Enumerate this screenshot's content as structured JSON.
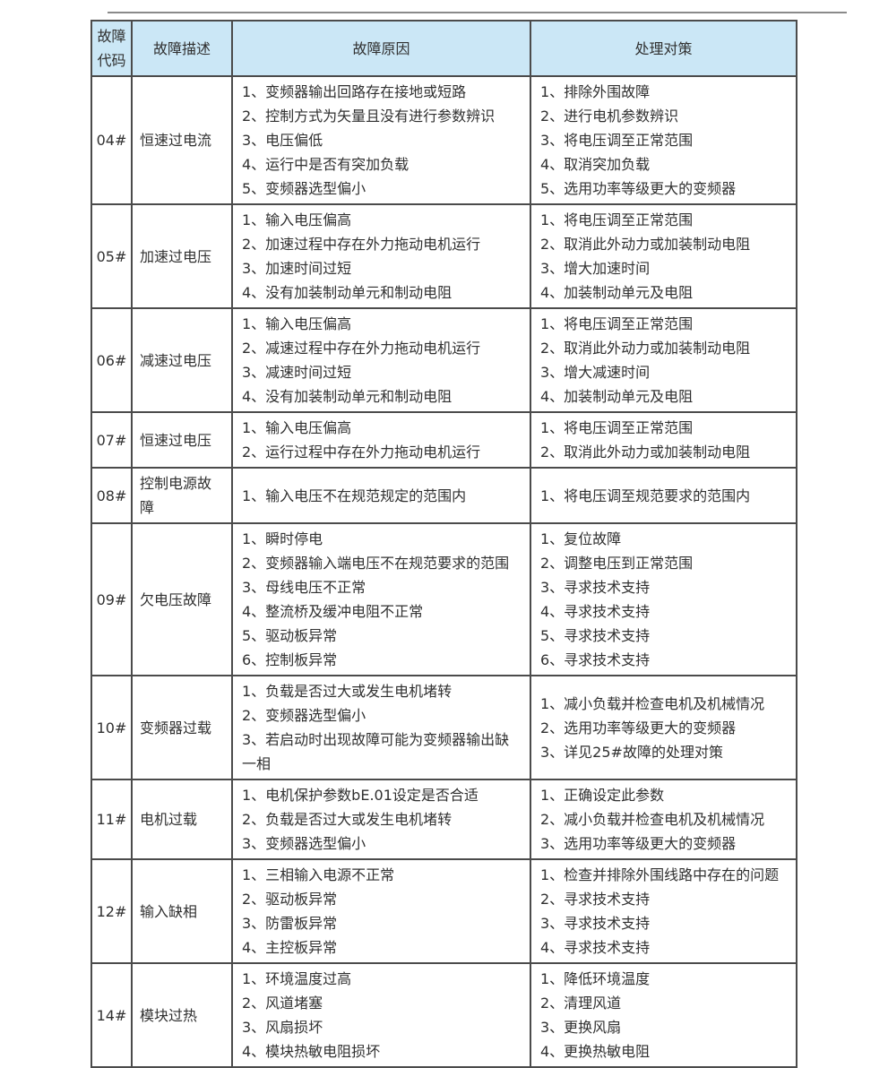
{
  "colors": {
    "header_bg": "#cbe7f6",
    "border": "#4b4b4b",
    "text": "#303030",
    "top_line": "#8a8a8a",
    "page_bg": "#ffffff"
  },
  "table": {
    "headers": [
      "故障代码",
      "故障描述",
      "故障原因",
      "处理对策"
    ],
    "rows": [
      {
        "code": "04#",
        "desc": "恒速过电流",
        "causes": [
          "1、变频器输出回路存在接地或短路",
          "2、控制方式为矢量且没有进行参数辨识",
          "3、电压偏低",
          "4、运行中是否有突加负载",
          "5、变频器选型偏小"
        ],
        "measures": [
          "1、排除外围故障",
          "2、进行电机参数辨识",
          "3、将电压调至正常范围",
          "4、取消突加负载",
          "5、选用功率等级更大的变频器"
        ]
      },
      {
        "code": "05#",
        "desc": "加速过电压",
        "causes": [
          "1、输入电压偏高",
          "2、加速过程中存在外力拖动电机运行",
          "3、加速时间过短",
          "4、没有加装制动单元和制动电阻"
        ],
        "measures": [
          "1、将电压调至正常范围",
          "2、取消此外动力或加装制动电阻",
          "3、增大加速时间",
          "4、加装制动单元及电阻"
        ]
      },
      {
        "code": "06#",
        "desc": "减速过电压",
        "causes": [
          "1、输入电压偏高",
          "2、减速过程中存在外力拖动电机运行",
          "3、减速时间过短",
          "4、没有加装制动单元和制动电阻"
        ],
        "measures": [
          "1、将电压调至正常范围",
          "2、取消此外动力或加装制动电阻",
          "3、增大减速时间",
          "4、加装制动单元及电阻"
        ]
      },
      {
        "code": "07#",
        "desc": "恒速过电压",
        "causes": [
          "1、输入电压偏高",
          "2、运行过程中存在外力拖动电机运行"
        ],
        "measures": [
          "1、将电压调至正常范围",
          "2、取消此外动力或加装制动电阻"
        ]
      },
      {
        "code": "08#",
        "desc": "控制电源故障",
        "causes": [
          "1、输入电压不在规范规定的范围内"
        ],
        "measures": [
          "1、将电压调至规范要求的范围内"
        ]
      },
      {
        "code": "09#",
        "desc": "欠电压故障",
        "causes": [
          "1、瞬时停电",
          "2、变频器输入端电压不在规范要求的范围",
          "3、母线电压不正常",
          "4、整流桥及缓冲电阻不正常",
          "5、驱动板异常",
          "6、控制板异常"
        ],
        "measures": [
          "1、复位故障",
          "2、调整电压到正常范围",
          "3、寻求技术支持",
          "4、寻求技术支持",
          "5、寻求技术支持",
          "6、寻求技术支持"
        ]
      },
      {
        "code": "10#",
        "desc": "变频器过载",
        "causes": [
          "1、负载是否过大或发生电机堵转",
          "2、变频器选型偏小",
          "3、若启动时出现故障可能为变频器输出缺一相"
        ],
        "measures": [
          "1、减小负载并检查电机及机械情况",
          "2、选用功率等级更大的变频器",
          "3、详见25#故障的处理对策"
        ]
      },
      {
        "code": "11#",
        "desc": "电机过载",
        "causes": [
          "1、电机保护参数bE.01设定是否合适",
          "2、负载是否过大或发生电机堵转",
          "3、变频器选型偏小"
        ],
        "measures": [
          "1、正确设定此参数",
          "2、减小负载并检查电机及机械情况",
          "3、选用功率等级更大的变频器"
        ]
      },
      {
        "code": "12#",
        "desc": "输入缺相",
        "causes": [
          "1、三相输入电源不正常",
          "2、驱动板异常",
          "3、防雷板异常",
          "4、主控板异常"
        ],
        "measures": [
          "1、检查并排除外围线路中存在的问题",
          "2、寻求技术支持",
          "3、寻求技术支持",
          "4、寻求技术支持"
        ]
      },
      {
        "code": "14#",
        "desc": "模块过热",
        "causes": [
          "1、环境温度过高",
          "2、风道堵塞",
          "3、风扇损坏",
          "4、模块热敏电阻损坏"
        ],
        "measures": [
          "1、降低环境温度",
          "2、清理风道",
          "3、更换风扇",
          "4、更换热敏电阻"
        ]
      }
    ]
  }
}
